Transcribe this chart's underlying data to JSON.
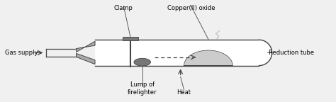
{
  "bg_color": "#f0f0f0",
  "line_color": "#444444",
  "gray_fill": "#aaaaaa",
  "light_gray": "#cccccc",
  "dark_gray": "#777777",
  "white": "#ffffff",
  "labels": {
    "gas_supply": "Gas supply",
    "clamp": "Clamp",
    "copper_oxide": "Copper(II) oxide",
    "lump": "Lump of\nfirelighter",
    "heat": "Heat",
    "reduction_tube": "Reduction tube"
  },
  "font_size": 6.0
}
